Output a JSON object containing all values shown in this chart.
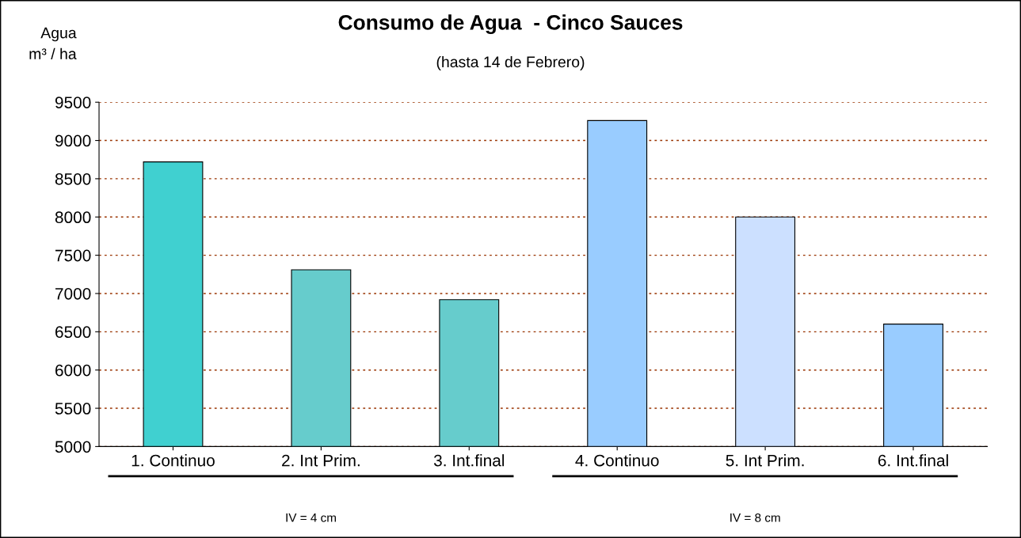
{
  "chart_data": {
    "type": "bar",
    "title": "Consumo de Agua  - Cinco Sauces",
    "subtitle": "(hasta 14 de Febrero)",
    "ylabel": "Agua\nm³ / ha",
    "categories": [
      "1. Continuo",
      "2. Int Prim.",
      "3. Int.final",
      "4. Continuo",
      "5. Int Prim.",
      "6. Int.final"
    ],
    "values": [
      8720,
      7310,
      6920,
      9260,
      8000,
      6600
    ],
    "colors": [
      "#40d0d0",
      "#66cccc",
      "#66cccc",
      "#99ccff",
      "#cce0ff",
      "#99ccff"
    ],
    "ylim": [
      5000,
      9500
    ],
    "yticks": [
      5000,
      5500,
      6000,
      6500,
      7000,
      7500,
      8000,
      8500,
      9000,
      9500
    ],
    "grid": "y",
    "annotations": [
      "IV = 4 cm",
      "IV = 8 cm"
    ]
  }
}
